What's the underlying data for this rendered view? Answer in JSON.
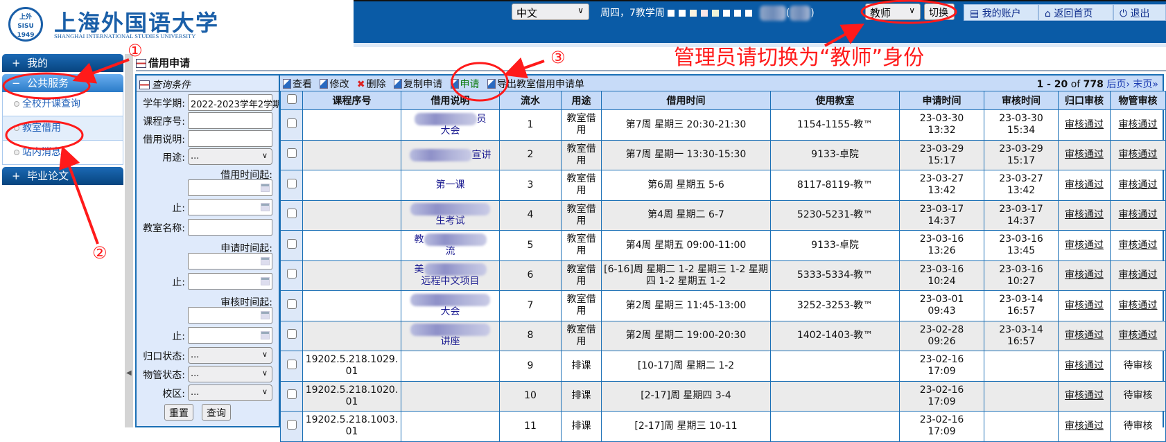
{
  "logo": {
    "seal_text": "上外 SISU 1949",
    "name_cn": "上海外国语大学",
    "name_en": "SHANGHAI INTERNATIONAL STUDIES UNIVERSITY"
  },
  "header": {
    "language": "中文",
    "week_text": "周四，7教学周",
    "identity": "教师",
    "switch_label": "切换",
    "paren_open": "(",
    "paren_close": ")",
    "account_buttons": [
      "我的账户",
      "返回首页",
      "退出"
    ]
  },
  "sidebar": {
    "groups": [
      {
        "label": "我的",
        "sign": "+"
      },
      {
        "label": "公共服务",
        "sign": "−",
        "items": [
          "全校开课查询",
          "教室借用",
          "站内消息"
        ]
      },
      {
        "label": "毕业论文",
        "sign": "+"
      }
    ]
  },
  "page_title": "借用申请",
  "filter": {
    "title": "查询条件",
    "term_label": "学年学期:",
    "term_value": "2022-2023学年2学期",
    "course_no_label": "课程序号:",
    "desc_label": "借用说明:",
    "use_label": "用途:",
    "use_value": "...",
    "borrow_start_label": "借用时间起:",
    "end_label": "止:",
    "room_label": "教室名称:",
    "apply_start_label": "申请时间起:",
    "audit_start_label": "审核时间起:",
    "dept_status_label": "归口状态:",
    "prop_status_label": "物管状态:",
    "campus_label": "校区:",
    "select_value": "...",
    "reset": "重置",
    "query": "查询"
  },
  "toolbar": {
    "view": "查看",
    "edit": "修改",
    "delete": "删除",
    "copy": "复制申请",
    "apply": "申请",
    "export": "导出教室借用申请单"
  },
  "pager": {
    "range": "1 - 20",
    "of": "of",
    "total": "778",
    "next": "后页›",
    "last": "末页»"
  },
  "table": {
    "columns": [
      "课程序号",
      "借用说明",
      "流水",
      "用途",
      "借用时间",
      "使用教室",
      "申请时间",
      "审核时间",
      "归口审核",
      "物管审核"
    ],
    "rows": [
      {
        "course": "",
        "desc_pre": "",
        "desc_suf": "员",
        "desc_line2": "大会",
        "blurred": true,
        "no": "1",
        "use": "教室借用",
        "time": "第7周 星期三 20:30-21:30",
        "room": "1154-1155-教™",
        "apply": "23-03-30 13:32",
        "audit": "23-03-30 15:34",
        "dept": "审核通过",
        "prop": "审核通过"
      },
      {
        "course": "",
        "desc_pre": "",
        "desc_suf": "宣讲",
        "desc_line2": "",
        "blurred": true,
        "no": "2",
        "use": "教室借用",
        "time": "第7周 星期一 13:30-15:30",
        "room": "9133-卓院",
        "apply": "23-03-29 15:17",
        "audit": "23-03-29 15:17",
        "dept": "审核通过",
        "prop": "审核通过"
      },
      {
        "course": "",
        "desc_pre": "第一课",
        "desc_suf": "",
        "desc_line2": "",
        "blurred": false,
        "no": "3",
        "use": "教室借用",
        "time": "第6周 星期五 5-6",
        "room": "8117-8119-教™",
        "apply": "23-03-27 13:42",
        "audit": "23-03-27 13:42",
        "dept": "审核通过",
        "prop": "审核通过"
      },
      {
        "course": "",
        "desc_pre": "",
        "desc_suf": "",
        "desc_line2": "生考试",
        "blurred": true,
        "no": "4",
        "use": "教室借用",
        "time": "第4周 星期二 6-7",
        "room": "5230-5231-教™",
        "apply": "23-03-17 14:37",
        "audit": "23-03-17 14:37",
        "dept": "审核通过",
        "prop": "审核通过"
      },
      {
        "course": "",
        "desc_pre": "教",
        "desc_suf": "",
        "desc_line2": "流",
        "blurred": true,
        "no": "5",
        "use": "教室借用",
        "time": "第4周 星期五 09:00-11:00",
        "room": "9133-卓院",
        "apply": "23-03-16 13:26",
        "audit": "23-03-16 13:45",
        "dept": "审核通过",
        "prop": "审核通过"
      },
      {
        "course": "",
        "desc_pre": "美",
        "desc_suf": "",
        "desc_line2": "远程中文项目",
        "blurred": true,
        "no": "6",
        "use": "教室借用",
        "time": "[6-16]周 星期二 1-2 星期三 1-2 星期四 1-2 星期五 1-2",
        "room": "5333-5334-教™",
        "apply": "23-03-16 10:24",
        "audit": "23-03-16 10:27",
        "dept": "审核通过",
        "prop": "审核通过"
      },
      {
        "course": "",
        "desc_pre": "",
        "desc_suf": "",
        "desc_line2": "大会",
        "blurred": true,
        "no": "7",
        "use": "教室借用",
        "time": "第2周 星期三 11:45-13:00",
        "room": "3252-3253-教™",
        "apply": "23-03-01 09:43",
        "audit": "23-03-14 16:57",
        "dept": "审核通过",
        "prop": "审核通过"
      },
      {
        "course": "",
        "desc_pre": "",
        "desc_suf": "",
        "desc_line2": "讲座",
        "blurred": true,
        "no": "8",
        "use": "教室借用",
        "time": "第2周 星期二 19:00-20:30",
        "room": "1402-1403-教™",
        "apply": "23-02-28 09:26",
        "audit": "23-03-14 16:57",
        "dept": "审核通过",
        "prop": "审核通过"
      },
      {
        "course": "19202.5.218.1029.01",
        "desc_pre": "",
        "desc_suf": "",
        "desc_line2": "",
        "blurred": false,
        "no": "9",
        "use": "排课",
        "time": "[10-17]周 星期二 1-2",
        "room": "",
        "apply": "23-02-16 17:09",
        "audit": "",
        "dept": "审核通过",
        "prop": "待审核"
      },
      {
        "course": "19202.5.218.1020.01",
        "desc_pre": "",
        "desc_suf": "",
        "desc_line2": "",
        "blurred": false,
        "no": "10",
        "use": "排课",
        "time": "[2-17]周 星期四 3-4",
        "room": "",
        "apply": "23-02-16 17:09",
        "audit": "",
        "dept": "审核通过",
        "prop": "待审核"
      },
      {
        "course": "19202.5.218.1003.01",
        "desc_pre": "",
        "desc_suf": "",
        "desc_line2": "",
        "blurred": false,
        "no": "11",
        "use": "排课",
        "time": "[2-17]周 星期三 10-11",
        "room": "",
        "apply": "23-02-16 17:09",
        "audit": "",
        "dept": "审核通过",
        "prop": "待审核"
      }
    ]
  },
  "annotations": {
    "text": "管理员请切换为“教师”身份",
    "step1": "①",
    "step2": "②",
    "step3": "③",
    "color": "#ff1a1a"
  },
  "colors": {
    "header_blue": "#0a5ba6",
    "table_border": "#1a6fb5",
    "table_header": "#c7dbf8"
  }
}
